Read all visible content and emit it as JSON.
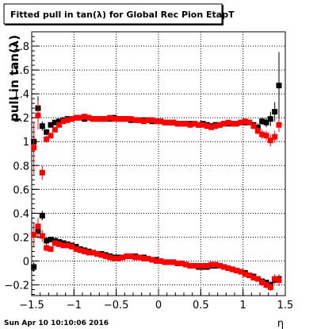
{
  "chart_data": {
    "type": "scatter",
    "title": "Fitted pull in tan(λ) for Global Rec Pion EtapT",
    "xlabel": "η",
    "ylabel": "pull in tan(λ)",
    "xlim": [
      -1.5,
      1.5
    ],
    "ylim": [
      -0.29,
      1.92
    ],
    "x_ticks": [
      -1.5,
      -1,
      -0.5,
      0,
      0.5,
      1,
      1.5
    ],
    "x_tick_labels": [
      "−1.5",
      "−1",
      "−0.5",
      "0",
      "0.5",
      "1",
      "1.5"
    ],
    "y_ticks": [
      -0.2,
      0,
      0.2,
      0.4,
      0.6,
      0.8,
      1,
      1.2,
      1.4,
      1.6,
      1.8
    ],
    "y_tick_labels": [
      "−0.2",
      "0",
      "0.2",
      "0.4",
      "0.6",
      "0.8",
      "1",
      "1.2",
      "1.4",
      "1.6",
      "1.8"
    ],
    "grid": true,
    "timestamp": "Sun Apr 10 10:10:06 2016",
    "series": [
      {
        "marker": "square",
        "color": "#000000",
        "x": [
          -1.475,
          -1.425,
          -1.375,
          -1.325,
          -1.275,
          -1.225,
          -1.175,
          -1.125,
          -1.075,
          -1.025,
          -0.975,
          -0.925,
          -0.875,
          -0.825,
          -0.775,
          -0.725,
          -0.675,
          -0.625,
          -0.575,
          -0.525,
          -0.475,
          -0.425,
          -0.375,
          -0.325,
          -0.275,
          -0.225,
          -0.175,
          -0.125,
          -0.075,
          -0.025,
          0.025,
          0.075,
          0.125,
          0.175,
          0.225,
          0.275,
          0.325,
          0.375,
          0.425,
          0.475,
          0.525,
          0.575,
          0.625,
          0.675,
          0.725,
          0.775,
          0.825,
          0.875,
          0.925,
          0.975,
          1.025,
          1.075,
          1.125,
          1.175,
          1.225,
          1.275,
          1.325,
          1.375,
          1.425
        ],
        "y": [
          1.0,
          1.28,
          1.13,
          1.08,
          1.14,
          1.16,
          1.17,
          1.18,
          1.19,
          1.19,
          1.2,
          1.2,
          1.19,
          1.2,
          1.19,
          1.19,
          1.19,
          1.19,
          1.19,
          1.2,
          1.19,
          1.19,
          1.19,
          1.18,
          1.18,
          1.18,
          1.18,
          1.18,
          1.17,
          1.17,
          1.17,
          1.16,
          1.16,
          1.16,
          1.15,
          1.15,
          1.15,
          1.15,
          1.15,
          1.14,
          1.15,
          1.14,
          1.13,
          1.14,
          1.14,
          1.15,
          1.15,
          1.15,
          1.15,
          1.16,
          1.16,
          1.16,
          1.14,
          1.12,
          1.17,
          1.16,
          1.19,
          1.25,
          1.47
        ],
        "err": [
          0.05,
          0.1,
          0.04,
          0.02,
          0.02,
          0.01,
          0.01,
          0.01,
          0.01,
          0.01,
          0.01,
          0.01,
          0.01,
          0.01,
          0.01,
          0.01,
          0.01,
          0.01,
          0.01,
          0.01,
          0.01,
          0.01,
          0.01,
          0.01,
          0.01,
          0.01,
          0.01,
          0.01,
          0.01,
          0.01,
          0.01,
          0.01,
          0.01,
          0.01,
          0.01,
          0.01,
          0.01,
          0.01,
          0.01,
          0.01,
          0.01,
          0.01,
          0.01,
          0.01,
          0.01,
          0.01,
          0.01,
          0.01,
          0.01,
          0.01,
          0.01,
          0.01,
          0.02,
          0.03,
          0.03,
          0.04,
          0.06,
          0.08,
          0.28
        ]
      },
      {
        "marker": "square",
        "color": "#ff0000",
        "x": [
          -1.475,
          -1.425,
          -1.375,
          -1.325,
          -1.275,
          -1.225,
          -1.175,
          -1.125,
          -1.075,
          -1.025,
          -0.975,
          -0.925,
          -0.875,
          -0.825,
          -0.775,
          -0.725,
          -0.675,
          -0.625,
          -0.575,
          -0.525,
          -0.475,
          -0.425,
          -0.375,
          -0.325,
          -0.275,
          -0.225,
          -0.175,
          -0.125,
          -0.075,
          -0.025,
          0.025,
          0.075,
          0.125,
          0.175,
          0.225,
          0.275,
          0.325,
          0.375,
          0.425,
          0.475,
          0.525,
          0.575,
          0.625,
          0.675,
          0.725,
          0.775,
          0.825,
          0.875,
          0.925,
          0.975,
          1.025,
          1.075,
          1.125,
          1.175,
          1.225,
          1.275,
          1.325,
          1.375,
          1.425
        ],
        "y": [
          0.95,
          1.22,
          0.74,
          1.02,
          1.05,
          1.1,
          1.14,
          1.17,
          1.18,
          1.19,
          1.2,
          1.2,
          1.21,
          1.2,
          1.19,
          1.19,
          1.19,
          1.19,
          1.2,
          1.19,
          1.19,
          1.19,
          1.19,
          1.19,
          1.18,
          1.18,
          1.17,
          1.18,
          1.18,
          1.17,
          1.17,
          1.16,
          1.16,
          1.16,
          1.15,
          1.15,
          1.15,
          1.14,
          1.15,
          1.14,
          1.14,
          1.13,
          1.12,
          1.13,
          1.14,
          1.15,
          1.16,
          1.15,
          1.15,
          1.16,
          1.17,
          1.16,
          1.13,
          1.09,
          1.06,
          1.05,
          1.01,
          1.04,
          1.14
        ],
        "err": [
          0.22,
          0.12,
          0.06,
          0.03,
          0.02,
          0.02,
          0.01,
          0.01,
          0.01,
          0.01,
          0.01,
          0.01,
          0.01,
          0.01,
          0.01,
          0.01,
          0.01,
          0.01,
          0.01,
          0.01,
          0.01,
          0.01,
          0.01,
          0.01,
          0.01,
          0.01,
          0.01,
          0.01,
          0.01,
          0.01,
          0.01,
          0.01,
          0.01,
          0.01,
          0.01,
          0.01,
          0.01,
          0.01,
          0.01,
          0.01,
          0.01,
          0.01,
          0.01,
          0.01,
          0.01,
          0.01,
          0.01,
          0.01,
          0.01,
          0.01,
          0.01,
          0.01,
          0.02,
          0.03,
          0.04,
          0.04,
          0.05,
          0.05,
          0.06
        ]
      },
      {
        "marker": "square",
        "color": "#000000",
        "x": [
          -1.475,
          -1.425,
          -1.375,
          -1.325,
          -1.275,
          -1.225,
          -1.175,
          -1.125,
          -1.075,
          -1.025,
          -0.975,
          -0.925,
          -0.875,
          -0.825,
          -0.775,
          -0.725,
          -0.675,
          -0.625,
          -0.575,
          -0.525,
          -0.475,
          -0.425,
          -0.375,
          -0.325,
          -0.275,
          -0.225,
          -0.175,
          -0.125,
          -0.075,
          -0.025,
          0.025,
          0.075,
          0.125,
          0.175,
          0.225,
          0.275,
          0.325,
          0.375,
          0.425,
          0.475,
          0.525,
          0.575,
          0.625,
          0.675,
          0.725,
          0.775,
          0.825,
          0.875,
          0.925,
          0.975,
          1.025,
          1.075,
          1.125,
          1.175,
          1.225,
          1.275,
          1.325,
          1.375,
          1.425
        ],
        "y": [
          -0.05,
          0.25,
          0.38,
          0.17,
          0.18,
          0.17,
          0.16,
          0.15,
          0.14,
          0.13,
          0.12,
          0.1,
          0.09,
          0.08,
          0.07,
          0.06,
          0.06,
          0.05,
          0.04,
          0.03,
          0.03,
          0.03,
          0.04,
          0.04,
          0.04,
          0.03,
          0.03,
          0.02,
          0.01,
          0.01,
          0.0,
          -0.01,
          -0.01,
          -0.01,
          -0.02,
          -0.02,
          -0.03,
          -0.04,
          -0.04,
          -0.05,
          -0.05,
          -0.05,
          -0.04,
          -0.04,
          -0.04,
          -0.05,
          -0.06,
          -0.07,
          -0.08,
          -0.09,
          -0.1,
          -0.12,
          -0.13,
          -0.15,
          -0.17,
          -0.18,
          -0.2,
          -0.16,
          -0.15
        ],
        "err": [
          0.04,
          0.06,
          0.04,
          0.03,
          0.02,
          0.02,
          0.01,
          0.01,
          0.01,
          0.01,
          0.01,
          0.01,
          0.01,
          0.01,
          0.01,
          0.01,
          0.01,
          0.01,
          0.01,
          0.01,
          0.01,
          0.01,
          0.01,
          0.01,
          0.01,
          0.01,
          0.01,
          0.01,
          0.01,
          0.01,
          0.01,
          0.01,
          0.01,
          0.01,
          0.01,
          0.01,
          0.01,
          0.01,
          0.01,
          0.01,
          0.01,
          0.01,
          0.01,
          0.01,
          0.01,
          0.01,
          0.01,
          0.01,
          0.01,
          0.01,
          0.01,
          0.01,
          0.01,
          0.02,
          0.02,
          0.02,
          0.03,
          0.03,
          0.04
        ]
      },
      {
        "marker": "square",
        "color": "#ff0000",
        "x": [
          -1.475,
          -1.425,
          -1.375,
          -1.325,
          -1.275,
          -1.225,
          -1.175,
          -1.125,
          -1.075,
          -1.025,
          -0.975,
          -0.925,
          -0.875,
          -0.825,
          -0.775,
          -0.725,
          -0.675,
          -0.625,
          -0.575,
          -0.525,
          -0.475,
          -0.425,
          -0.375,
          -0.325,
          -0.275,
          -0.225,
          -0.175,
          -0.125,
          -0.075,
          -0.025,
          0.025,
          0.075,
          0.125,
          0.175,
          0.225,
          0.275,
          0.325,
          0.375,
          0.425,
          0.475,
          0.525,
          0.575,
          0.625,
          0.675,
          0.725,
          0.775,
          0.825,
          0.875,
          0.925,
          0.975,
          1.025,
          1.075,
          1.125,
          1.175,
          1.225,
          1.275,
          1.325,
          1.375,
          1.425
        ],
        "y": [
          0.22,
          0.29,
          0.21,
          0.11,
          0.1,
          0.15,
          0.14,
          0.13,
          0.13,
          0.12,
          0.1,
          0.09,
          0.08,
          0.07,
          0.07,
          0.06,
          0.05,
          0.04,
          0.03,
          0.02,
          0.02,
          0.03,
          0.04,
          0.04,
          0.03,
          0.03,
          0.02,
          0.02,
          0.01,
          0.0,
          0.0,
          -0.01,
          -0.01,
          -0.01,
          -0.02,
          -0.02,
          -0.03,
          -0.04,
          -0.04,
          -0.04,
          -0.04,
          -0.04,
          -0.03,
          -0.03,
          -0.04,
          -0.05,
          -0.06,
          -0.07,
          -0.08,
          -0.09,
          -0.11,
          -0.12,
          -0.14,
          -0.15,
          -0.18,
          -0.2,
          -0.22,
          -0.15,
          -0.16
        ],
        "err": [
          0.1,
          0.07,
          0.05,
          0.03,
          0.02,
          0.02,
          0.01,
          0.01,
          0.01,
          0.01,
          0.01,
          0.01,
          0.01,
          0.01,
          0.01,
          0.01,
          0.01,
          0.01,
          0.01,
          0.01,
          0.01,
          0.01,
          0.01,
          0.01,
          0.01,
          0.01,
          0.01,
          0.01,
          0.01,
          0.01,
          0.01,
          0.01,
          0.01,
          0.01,
          0.01,
          0.01,
          0.01,
          0.01,
          0.01,
          0.01,
          0.01,
          0.01,
          0.01,
          0.01,
          0.01,
          0.01,
          0.01,
          0.01,
          0.01,
          0.01,
          0.01,
          0.01,
          0.02,
          0.02,
          0.03,
          0.03,
          0.03,
          0.04,
          0.05
        ]
      }
    ]
  }
}
